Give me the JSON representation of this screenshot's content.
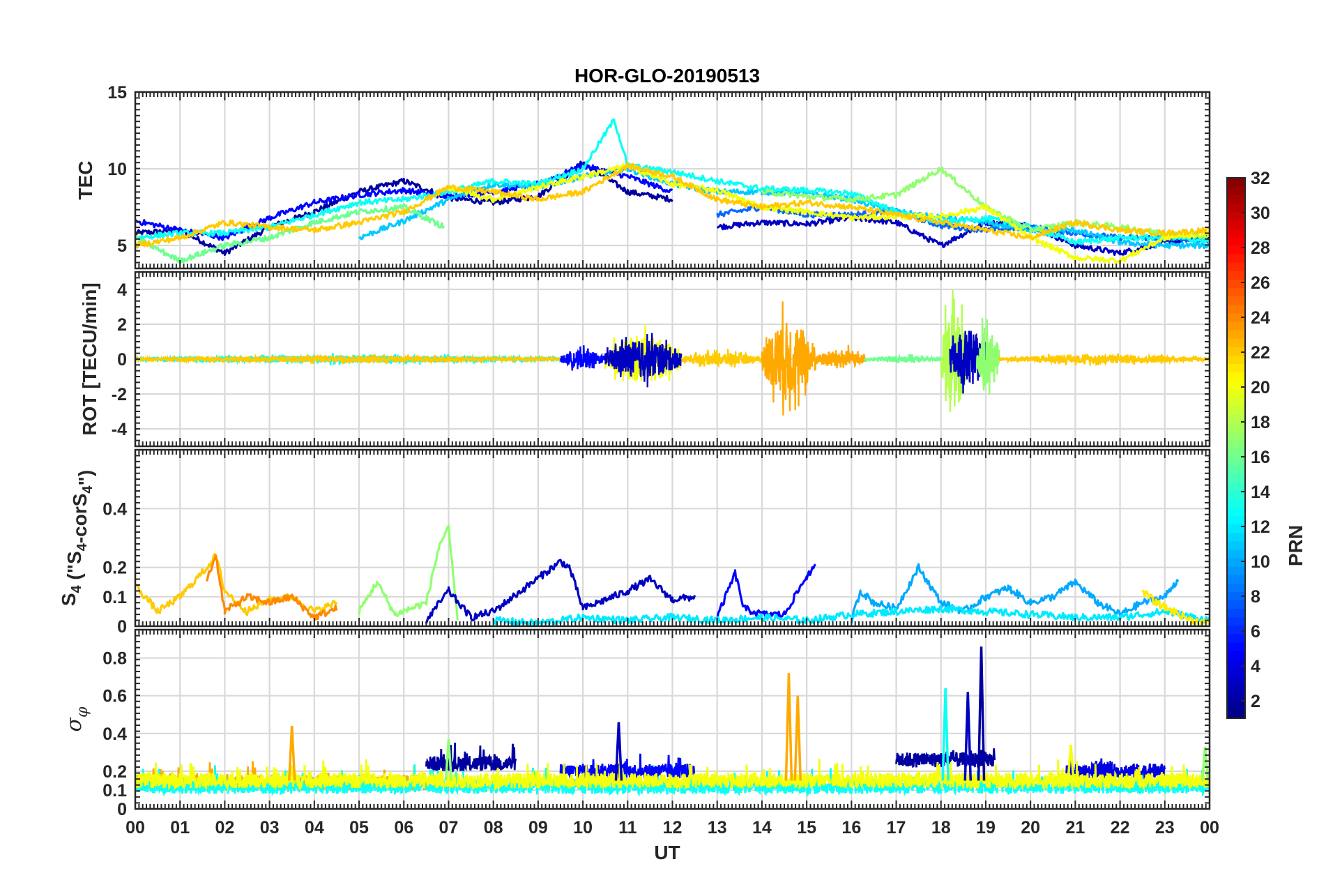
{
  "chart_data": {
    "type": "line",
    "title": "HOR-GLO-20190513",
    "xlabel": "UT",
    "x_ticks": [
      "00",
      "01",
      "02",
      "03",
      "04",
      "05",
      "06",
      "07",
      "08",
      "09",
      "10",
      "11",
      "12",
      "13",
      "14",
      "15",
      "16",
      "17",
      "18",
      "19",
      "20",
      "21",
      "22",
      "23",
      "00"
    ],
    "xlim": [
      0,
      24
    ],
    "grid": true,
    "colorbar": {
      "label": "PRN",
      "range": [
        1,
        32
      ],
      "ticks": [
        "2",
        "4",
        "6",
        "8",
        "10",
        "12",
        "14",
        "16",
        "18",
        "20",
        "22",
        "24",
        "26",
        "28",
        "30",
        "32"
      ],
      "colormap": "jet"
    },
    "panels": [
      {
        "id": "tec",
        "ylabel": "TEC",
        "ylim": [
          3.5,
          15
        ],
        "y_ticks": [
          5,
          10,
          15
        ],
        "series": [
          {
            "name": "PRN 2",
            "prn": 2,
            "x": [
              0,
              1,
              2,
              3,
              4,
              5,
              6,
              7,
              8,
              9,
              10,
              11,
              12
            ],
            "values": [
              5.8,
              6.0,
              4.5,
              6.2,
              7.2,
              8.5,
              9.2,
              8.1,
              7.8,
              8.2,
              10.4,
              8.5,
              8.0
            ]
          },
          {
            "name": "PRN 3",
            "prn": 3,
            "x": [
              13,
              14,
              15,
              16,
              17,
              18,
              19,
              20,
              21,
              22,
              23,
              24
            ],
            "values": [
              6.2,
              6.5,
              6.4,
              6.8,
              6.5,
              5.0,
              6.5,
              6.3,
              5.0,
              4.5,
              5.2,
              5.5
            ]
          },
          {
            "name": "PRN 5",
            "prn": 5,
            "x": [
              0,
              1,
              2,
              3,
              4,
              5,
              6,
              7,
              8,
              9,
              10,
              11,
              12
            ],
            "values": [
              6.6,
              6.0,
              5.5,
              6.8,
              7.8,
              8.3,
              8.6,
              8.2,
              8.5,
              9.0,
              10.2,
              9.5,
              8.5
            ]
          },
          {
            "name": "PRN 8",
            "prn": 8,
            "x": [
              13,
              14,
              15,
              16,
              17,
              18,
              19,
              20,
              21,
              22,
              23,
              24
            ],
            "values": [
              7.0,
              7.5,
              7.0,
              7.0,
              7.2,
              6.3,
              6.0,
              6.2,
              5.8,
              5.5,
              5.5,
              5.3
            ]
          },
          {
            "name": "PRN 11",
            "prn": 11,
            "x": [
              5,
              6,
              7,
              8,
              9,
              10,
              11,
              12,
              13,
              14,
              15,
              16,
              17,
              18,
              19,
              20,
              21,
              22,
              23,
              24
            ],
            "values": [
              5.5,
              6.6,
              8.0,
              9.0,
              8.8,
              9.5,
              10.0,
              9.0,
              8.5,
              8.5,
              8.4,
              8.0,
              7.2,
              6.8,
              6.5,
              6.0,
              6.0,
              5.2,
              5.0,
              5.0
            ]
          },
          {
            "name": "PRN 13",
            "prn": 13,
            "x": [
              0,
              1,
              2,
              3,
              4,
              5,
              6,
              7,
              8,
              9,
              10,
              10.7,
              11,
              12,
              13,
              14,
              15,
              16,
              17,
              18,
              19,
              20,
              21,
              22,
              23,
              24
            ],
            "values": [
              5.5,
              5.8,
              5.8,
              6.2,
              7.0,
              7.8,
              8.0,
              8.5,
              9.2,
              9.0,
              10.0,
              13.2,
              10.2,
              9.8,
              9.2,
              8.7,
              8.6,
              8.4,
              7.2,
              6.5,
              6.8,
              6.2,
              5.2,
              5.5,
              5.5,
              5.3
            ]
          },
          {
            "name": "PRN 16",
            "prn": 16,
            "x": [
              0,
              1,
              2,
              3,
              4,
              5,
              6,
              6.9
            ],
            "values": [
              5.5,
              4.0,
              5.0,
              5.5,
              6.5,
              7.2,
              7.5,
              6.2
            ]
          },
          {
            "name": "PRN 17",
            "prn": 17,
            "x": [
              14,
              15,
              16,
              17,
              18,
              19,
              20,
              21,
              22,
              23,
              24
            ],
            "values": [
              8.5,
              8.2,
              8.0,
              8.3,
              10.0,
              7.5,
              6.0,
              6.5,
              6.2,
              5.8,
              5.5
            ]
          },
          {
            "name": "PRN 20",
            "prn": 20,
            "x": [
              7,
              8,
              9,
              10,
              11,
              12,
              13,
              14,
              15,
              16,
              17,
              18,
              19,
              20,
              21,
              22,
              23,
              24
            ],
            "values": [
              8.8,
              8.0,
              8.8,
              9.5,
              10.2,
              9.0,
              8.6,
              7.5,
              7.2,
              6.8,
              6.9,
              6.9,
              7.5,
              5.5,
              4.2,
              4.0,
              5.5,
              5.8
            ]
          },
          {
            "name": "PRN 22",
            "prn": 22,
            "x": [
              0,
              1,
              2,
              3,
              4,
              5,
              6,
              7,
              8,
              9,
              10,
              11,
              12,
              13,
              14,
              15,
              16,
              17,
              18,
              19,
              20,
              21,
              22,
              23,
              24
            ],
            "values": [
              5.0,
              5.5,
              6.5,
              6.2,
              6.0,
              6.5,
              7.2,
              8.8,
              8.5,
              8.0,
              8.5,
              10.2,
              9.5,
              8.0,
              7.5,
              7.8,
              7.5,
              7.0,
              6.5,
              6.0,
              5.5,
              6.5,
              6.0,
              5.8,
              6.0
            ]
          }
        ]
      },
      {
        "id": "rot",
        "ylabel": "ROT [TECU/min]",
        "ylim": [
          -5,
          5
        ],
        "y_ticks": [
          -4,
          -2,
          0,
          2,
          4
        ],
        "noise_bursts": [
          {
            "start": 0,
            "end": 9.5,
            "amp": 0.35,
            "prn": 13
          },
          {
            "start": 0,
            "end": 9.5,
            "amp": 0.3,
            "prn": 22
          },
          {
            "start": 9.5,
            "end": 10.5,
            "amp": 0.8,
            "prn": 5
          },
          {
            "start": 10.5,
            "end": 12.2,
            "amp": 2.2,
            "prn": 20
          },
          {
            "start": 10.5,
            "end": 12.2,
            "amp": 1.8,
            "prn": 3
          },
          {
            "start": 12.2,
            "end": 14.0,
            "amp": 0.6,
            "prn": 22
          },
          {
            "start": 14.0,
            "end": 15.2,
            "amp": 3.6,
            "prn": 23
          },
          {
            "start": 15.2,
            "end": 16.3,
            "amp": 0.9,
            "prn": 23
          },
          {
            "start": 16.3,
            "end": 18.0,
            "amp": 0.3,
            "prn": 16
          },
          {
            "start": 18.0,
            "end": 18.6,
            "amp": 4.6,
            "prn": 18
          },
          {
            "start": 18.2,
            "end": 19.0,
            "amp": 2.8,
            "prn": 3
          },
          {
            "start": 18.8,
            "end": 19.3,
            "amp": 3.0,
            "prn": 17
          },
          {
            "start": 19.3,
            "end": 24.0,
            "amp": 0.4,
            "prn": 22
          }
        ]
      },
      {
        "id": "s4",
        "ylabel": "S4 (\"S4-corS4\")",
        "ylim": [
          0,
          0.6
        ],
        "y_ticks": [
          0,
          0.1,
          0.2,
          0.4
        ],
        "series": [
          {
            "name": "PRN 22",
            "prn": 22,
            "x": [
              0,
              0.5,
              1,
              1.6,
              1.8,
              2.0,
              2.5,
              3,
              3.5,
              4,
              4.5
            ],
            "values": [
              0.14,
              0.05,
              0.1,
              0.2,
              0.24,
              0.12,
              0.05,
              0.09,
              0.1,
              0.05,
              0.08
            ]
          },
          {
            "name": "PRN 24",
            "prn": 24,
            "x": [
              1.6,
              1.8,
              2.0,
              2.5,
              3.0,
              3.5,
              4.0,
              4.5
            ],
            "values": [
              0.16,
              0.24,
              0.05,
              0.1,
              0.08,
              0.1,
              0.03,
              0.06
            ]
          },
          {
            "name": "PRN 17",
            "prn": 17,
            "x": [
              5,
              5.4,
              5.8,
              6.5,
              6.8,
              7.0,
              7.2
            ],
            "values": [
              0.05,
              0.15,
              0.04,
              0.08,
              0.28,
              0.33,
              0.02
            ]
          },
          {
            "name": "PRN 3",
            "prn": 3,
            "x": [
              6.5,
              7,
              7.5,
              8,
              9.5,
              9.7,
              10,
              11,
              11.5,
              12,
              12.5
            ],
            "values": [
              0.02,
              0.12,
              0.03,
              0.05,
              0.22,
              0.2,
              0.06,
              0.12,
              0.16,
              0.09,
              0.1
            ]
          },
          {
            "name": "PRN 5",
            "prn": 5,
            "x": [
              13,
              13.4,
              13.6,
              14,
              14.5,
              15,
              15.2
            ],
            "values": [
              0.03,
              0.18,
              0.06,
              0.04,
              0.04,
              0.17,
              0.2
            ]
          },
          {
            "name": "PRN 10",
            "prn": 10,
            "x": [
              16,
              16.2,
              16.5,
              17,
              17.5,
              18,
              18.5,
              19,
              19.5,
              20,
              20.5,
              21,
              21.5,
              22,
              22.5,
              23,
              23.3
            ],
            "values": [
              0.02,
              0.12,
              0.08,
              0.06,
              0.2,
              0.08,
              0.05,
              0.1,
              0.13,
              0.08,
              0.1,
              0.15,
              0.08,
              0.04,
              0.08,
              0.1,
              0.16
            ]
          },
          {
            "name": "PRN 12",
            "prn": 12,
            "x": [
              8,
              9,
              10,
              11,
              12,
              13,
              14,
              15,
              16,
              17,
              18,
              19,
              20,
              21,
              22,
              23,
              24
            ],
            "values": [
              0.02,
              0.01,
              0.03,
              0.02,
              0.03,
              0.02,
              0.03,
              0.02,
              0.04,
              0.05,
              0.06,
              0.05,
              0.04,
              0.03,
              0.03,
              0.05,
              0.02
            ]
          },
          {
            "name": "PRN 21",
            "prn": 21,
            "x": [
              22.5,
              22.8,
              23.2,
              23.6,
              24
            ],
            "values": [
              0.12,
              0.08,
              0.05,
              0.02,
              0.01
            ]
          }
        ]
      },
      {
        "id": "sigma",
        "ylabel": "σφ",
        "ylim": [
          0,
          0.95
        ],
        "y_ticks": [
          0,
          0.1,
          0.2,
          0.4,
          0.6,
          0.8
        ],
        "spikes": [
          {
            "x": 3.5,
            "value": 0.44,
            "prn": 23
          },
          {
            "x": 10.8,
            "value": 0.46,
            "prn": 3
          },
          {
            "x": 14.6,
            "value": 0.72,
            "prn": 23
          },
          {
            "x": 14.8,
            "value": 0.6,
            "prn": 23
          },
          {
            "x": 18.1,
            "value": 0.64,
            "prn": 13
          },
          {
            "x": 18.6,
            "value": 0.62,
            "prn": 3
          },
          {
            "x": 18.9,
            "value": 0.86,
            "prn": 2
          },
          {
            "x": 7.0,
            "value": 0.37,
            "prn": 17
          },
          {
            "x": 20.9,
            "value": 0.34,
            "prn": 20
          },
          {
            "x": 23.9,
            "value": 0.33,
            "prn": 17
          }
        ],
        "baseline": [
          {
            "start": 0,
            "end": 6.5,
            "level": 0.14,
            "prn": 23
          },
          {
            "start": 0,
            "end": 24,
            "level": 0.12,
            "prn": 13
          },
          {
            "start": 6.5,
            "end": 8.5,
            "level": 0.24,
            "prn": 2
          },
          {
            "start": 9.5,
            "end": 12.5,
            "level": 0.2,
            "prn": 5
          },
          {
            "start": 17.0,
            "end": 19.2,
            "level": 0.26,
            "prn": 2
          },
          {
            "start": 20.8,
            "end": 23.0,
            "level": 0.2,
            "prn": 4
          },
          {
            "start": 0,
            "end": 24,
            "level": 0.15,
            "prn": 20
          }
        ]
      }
    ]
  }
}
